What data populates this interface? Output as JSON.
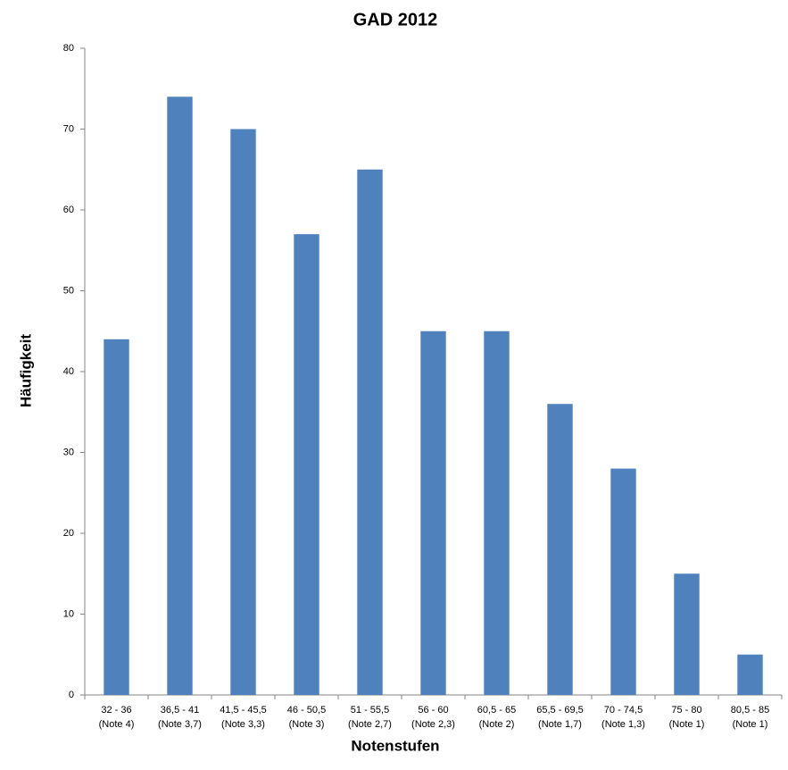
{
  "chart_data": {
    "type": "bar",
    "title": "GAD 2012",
    "x_label": "Notenstufen",
    "y_label": "Häufigkeit",
    "categories": [
      [
        "32 - 36",
        "(Note 4)"
      ],
      [
        "36,5 - 41",
        "(Note 3,7)"
      ],
      [
        "41,5 - 45,5",
        "(Note 3,3)"
      ],
      [
        "46 - 50,5",
        "(Note 3)"
      ],
      [
        "51 - 55,5",
        "(Note 2,7)"
      ],
      [
        "56 - 60",
        "(Note 2,3)"
      ],
      [
        "60,5 - 65",
        "(Note 2)"
      ],
      [
        "65,5 - 69,5",
        "(Note 1,7)"
      ],
      [
        "70 - 74,5",
        "(Note 1,3)"
      ],
      [
        "75 - 80",
        "(Note 1)"
      ],
      [
        "80,5 - 85",
        "(Note 1)"
      ]
    ],
    "values": [
      44,
      74,
      70,
      57,
      65,
      45,
      45,
      36,
      28,
      15,
      5
    ],
    "color": "#4f81bd",
    "ylim": [
      0,
      80
    ],
    "yticks": [
      0,
      10,
      20,
      30,
      40,
      50,
      60,
      70,
      80
    ],
    "grid": false
  }
}
